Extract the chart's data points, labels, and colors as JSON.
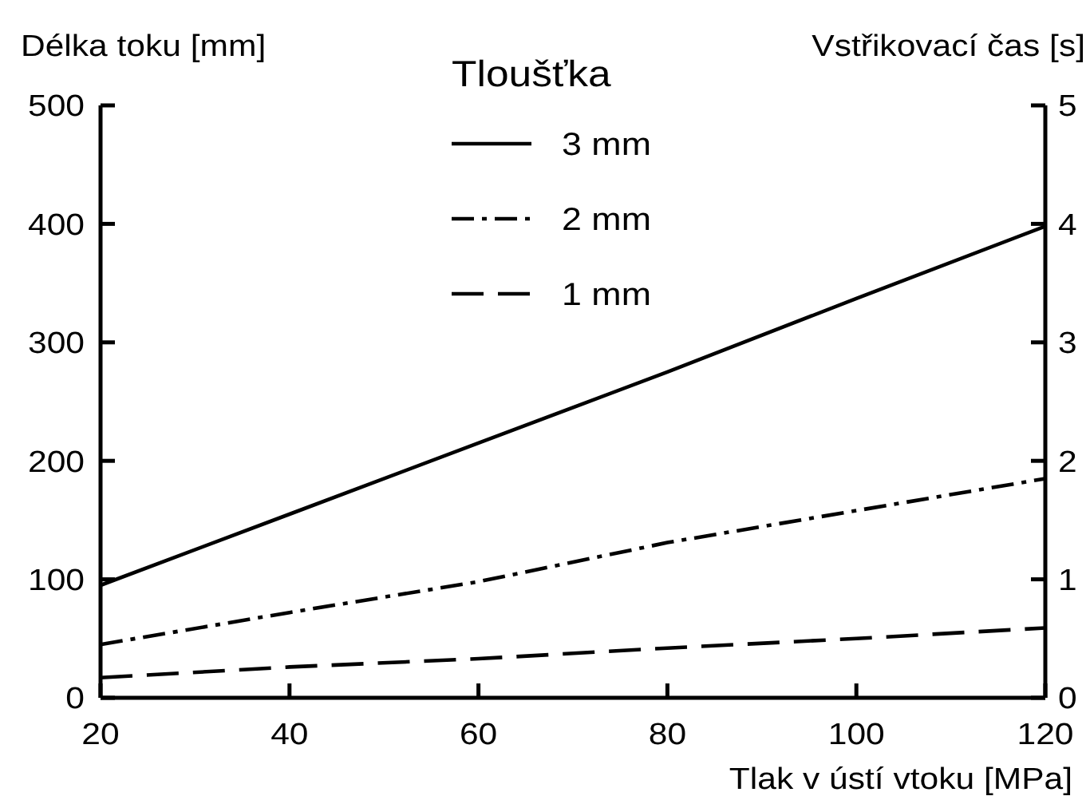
{
  "chart_data": {
    "type": "line",
    "xlabel": "Tlak v ústí vtoku [MPa]",
    "ylabel": "Délka toku [mm]",
    "y2label": "Vstřikovací čas [s]",
    "legend_title": "Tloušťka",
    "legend": "top",
    "x": [
      20,
      40,
      60,
      80,
      100,
      120
    ],
    "xlim": [
      20,
      120
    ],
    "xticks": [
      20,
      40,
      60,
      80,
      100,
      120
    ],
    "ylim": [
      0,
      500
    ],
    "yticks": [
      0,
      100,
      200,
      300,
      400,
      500
    ],
    "y2lim": [
      0,
      5
    ],
    "y2ticks": [
      0,
      1,
      2,
      3,
      4,
      5
    ],
    "series": [
      {
        "name": "3 mm",
        "color": "#000000",
        "line_style": "solid",
        "values": [
          95,
          155,
          215,
          275,
          337,
          398
        ]
      },
      {
        "name": "2 mm",
        "color": "#000000",
        "line_style": "dashdot",
        "values": [
          45,
          72,
          98,
          131,
          158,
          185
        ]
      },
      {
        "name": "1 mm",
        "color": "#000000",
        "line_style": "dashed",
        "values": [
          17,
          26,
          33,
          42,
          50,
          59
        ]
      }
    ]
  }
}
